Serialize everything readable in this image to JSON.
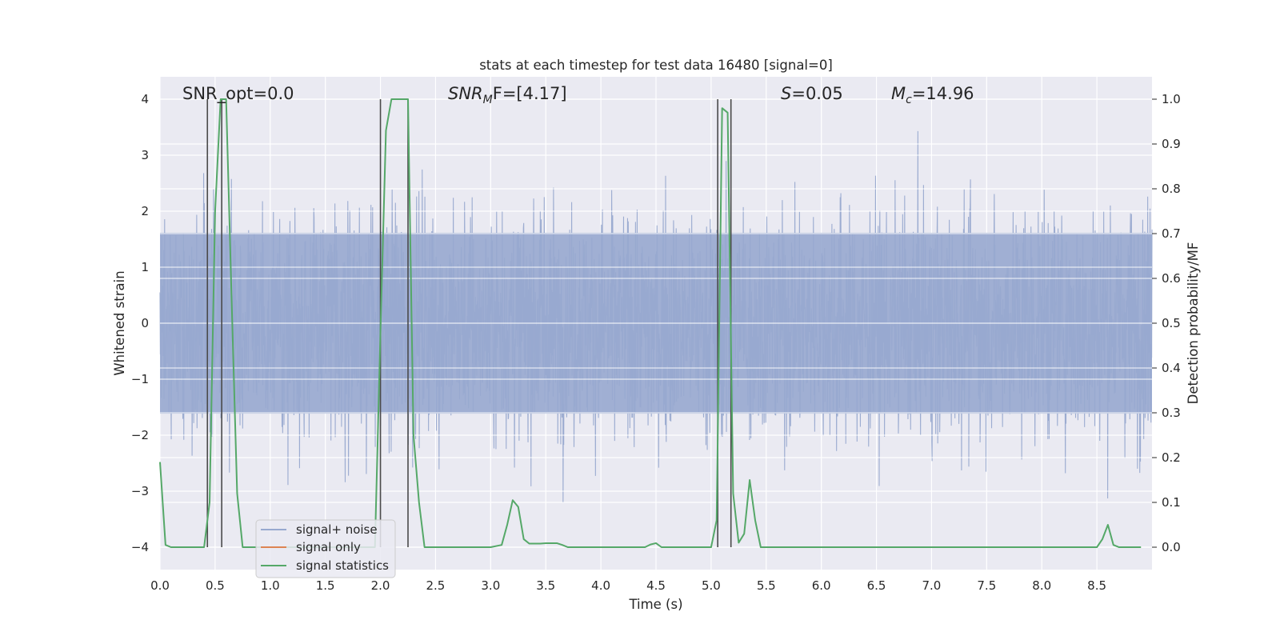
{
  "colors": {
    "background": "#ffffff",
    "plot_background": "#eaeaf2",
    "grid": "#ffffff",
    "noise": "#98a9cf",
    "signal_only": "#dd8452",
    "statistics": "#55a868",
    "marker_lines": "#4a4a4a",
    "text": "#262626"
  },
  "chart_data": {
    "type": "line",
    "title": "stats at each timestep for test data 16480 [signal=0]",
    "xlabel": "Time (s)",
    "ylabel_left": "Whitened strain",
    "ylabel_right": "Detection probability/MF",
    "xlim": [
      0,
      9.0
    ],
    "ylim_left": [
      -4.4,
      4.4
    ],
    "ylim_right": [
      -0.05,
      1.05
    ],
    "x_ticks": [
      "0.0",
      "0.5",
      "1.0",
      "1.5",
      "2.0",
      "2.5",
      "3.0",
      "3.5",
      "4.0",
      "4.5",
      "5.0",
      "5.5",
      "6.0",
      "6.5",
      "7.0",
      "7.5",
      "8.0",
      "8.5"
    ],
    "y_left_ticks": [
      "−4",
      "−3",
      "−2",
      "−1",
      "0",
      "1",
      "2",
      "3",
      "4"
    ],
    "y_right_ticks": [
      "0.0",
      "0.1",
      "0.2",
      "0.3",
      "0.4",
      "0.5",
      "0.6",
      "0.7",
      "0.8",
      "0.9",
      "1.0"
    ],
    "grid": true,
    "legend_position": "lower-left",
    "annotations": {
      "snr_opt": "SNR_opt=0.0",
      "snr_mf_main": "SNR",
      "snr_mf_sub": "M",
      "snr_mf_rest": "F=[4.17]",
      "s_main": "S",
      "s_rest": "=0.05",
      "mc_main": "M",
      "mc_sub": "c",
      "mc_rest": "=14.96"
    },
    "series": [
      {
        "name": "signal+ noise",
        "axis": "left",
        "envelope": {
          "upper_typical": 1.9,
          "lower_typical": -1.9,
          "peak_max": 4.0,
          "peak_min": -4.0
        }
      },
      {
        "name": "signal only",
        "axis": "left",
        "values": "flat at 0 (no signal)"
      },
      {
        "name": "signal statistics",
        "axis": "right",
        "x": [
          0.0,
          0.05,
          0.1,
          0.15,
          0.2,
          0.25,
          0.3,
          0.35,
          0.4,
          0.45,
          0.5,
          0.55,
          0.6,
          0.65,
          0.7,
          0.75,
          0.8,
          0.85,
          0.9,
          0.95,
          1.0,
          1.1,
          1.2,
          1.3,
          1.4,
          1.5,
          1.6,
          1.7,
          1.8,
          1.9,
          1.95,
          2.0,
          2.05,
          2.1,
          2.15,
          2.2,
          2.25,
          2.3,
          2.35,
          2.4,
          2.5,
          2.6,
          2.7,
          2.8,
          2.9,
          3.0,
          3.1,
          3.15,
          3.2,
          3.25,
          3.3,
          3.35,
          3.4,
          3.45,
          3.5,
          3.55,
          3.6,
          3.65,
          3.7,
          3.75,
          3.8,
          3.9,
          4.0,
          4.1,
          4.2,
          4.3,
          4.4,
          4.45,
          4.5,
          4.55,
          4.6,
          4.7,
          4.8,
          4.9,
          4.95,
          5.0,
          5.05,
          5.1,
          5.15,
          5.2,
          5.25,
          5.3,
          5.35,
          5.4,
          5.45,
          5.5,
          5.55,
          5.6,
          5.7,
          6.0,
          6.5,
          7.0,
          7.5,
          8.0,
          8.5,
          8.55,
          8.6,
          8.65,
          8.7,
          8.75,
          8.8,
          8.85,
          8.9
        ],
        "values": [
          0.19,
          0.005,
          0.0,
          0.0,
          0.0,
          0.0,
          0.0,
          0.0,
          0.0,
          0.1,
          0.75,
          1.0,
          1.0,
          0.55,
          0.12,
          0.0,
          0.0,
          0.0,
          0.0,
          0.0,
          0.0,
          0.0,
          0.0,
          0.0,
          0.0,
          0.0,
          0.0,
          0.0,
          0.0,
          0.0,
          0.0,
          0.48,
          0.93,
          1.0,
          1.0,
          1.0,
          1.0,
          0.25,
          0.1,
          0.0,
          0.0,
          0.0,
          0.0,
          0.0,
          0.0,
          0.0,
          0.005,
          0.05,
          0.105,
          0.09,
          0.018,
          0.008,
          0.008,
          0.008,
          0.009,
          0.009,
          0.009,
          0.005,
          0.0,
          0.0,
          0.0,
          0.0,
          0.0,
          0.0,
          0.0,
          0.0,
          0.0,
          0.006,
          0.009,
          0.0,
          0.0,
          0.0,
          0.0,
          0.0,
          0.0,
          0.0,
          0.06,
          0.98,
          0.97,
          0.12,
          0.01,
          0.03,
          0.15,
          0.06,
          0.0,
          0.0,
          0.0,
          0.0,
          0.0,
          0.0,
          0.0,
          0.0,
          0.0,
          0.0,
          0.0,
          0.018,
          0.05,
          0.005,
          0.0,
          0.0,
          0.0,
          0.0,
          0.0
        ]
      }
    ],
    "vertical_markers": [
      0.43,
      0.56,
      2.0,
      2.25,
      5.06,
      5.18
    ]
  }
}
